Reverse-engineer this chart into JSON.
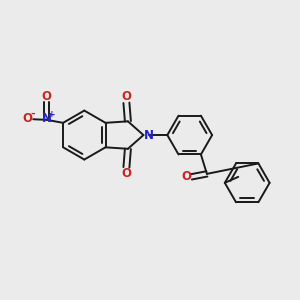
{
  "background_color": "#ebebeb",
  "bond_color": "#1a1a1a",
  "n_color": "#2222cc",
  "o_color": "#cc2222",
  "line_width": 1.4,
  "fig_width": 3.0,
  "fig_height": 3.0,
  "dpi": 100,
  "xlim": [
    0,
    10
  ],
  "ylim": [
    0,
    10
  ]
}
